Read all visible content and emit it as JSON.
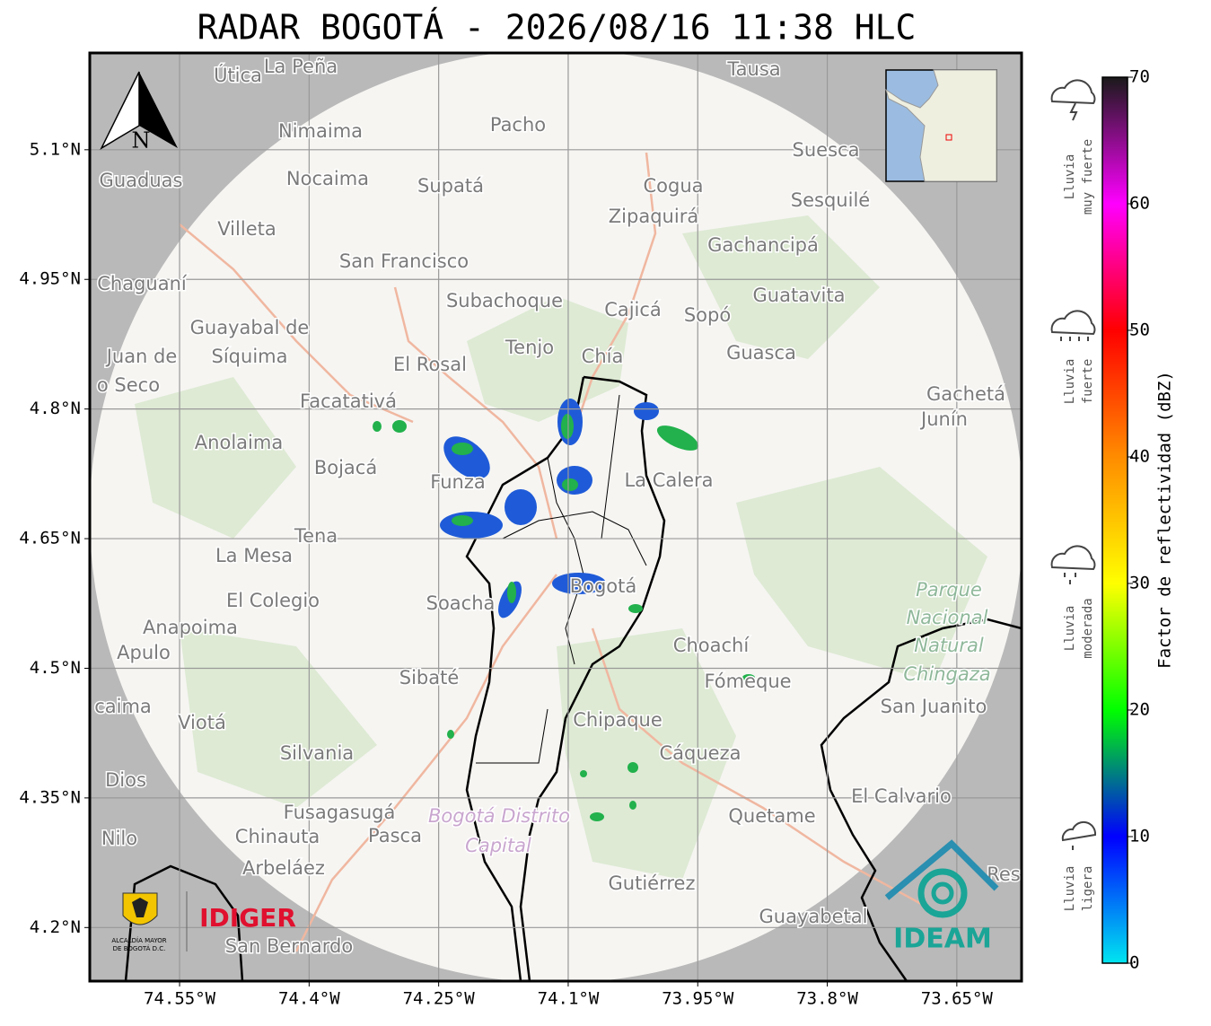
{
  "title": "RADAR BOGOTÁ - 2026/08/16 11:38 HLC",
  "map": {
    "xlim": [
      -74.654,
      -73.575
    ],
    "ylim": [
      4.138,
      5.212
    ],
    "xticks": [
      {
        "value": -74.55,
        "label": "74.55°W"
      },
      {
        "value": -74.4,
        "label": "74.4°W"
      },
      {
        "value": -74.25,
        "label": "74.25°W"
      },
      {
        "value": -74.1,
        "label": "74.1°W"
      },
      {
        "value": -73.95,
        "label": "73.95°W"
      },
      {
        "value": -73.8,
        "label": "73.8°W"
      },
      {
        "value": -73.65,
        "label": "73.65°W"
      }
    ],
    "yticks": [
      {
        "value": 5.1,
        "label": "5.1°N"
      },
      {
        "value": 4.95,
        "label": "4.95°N"
      },
      {
        "value": 4.8,
        "label": "4.8°N"
      },
      {
        "value": 4.65,
        "label": "4.65°N"
      },
      {
        "value": 4.5,
        "label": "4.5°N"
      },
      {
        "value": 4.35,
        "label": "4.35°N"
      },
      {
        "value": 4.2,
        "label": "4.2°N"
      }
    ],
    "grid": true,
    "north": "N",
    "places": [
      "La Peña",
      "Útica",
      "Tausa",
      "Pacho",
      "Nimaima",
      "Guaduas",
      "Nocaima",
      "Supatá",
      "Cogua",
      "Suesca",
      "Sesquilé",
      "Zipaquirá",
      "Villeta",
      "Gachancipá",
      "San Francisco",
      "Chaguaní",
      "Guatavita",
      "Subachoque",
      "Cajicá",
      "Sopó",
      "Guayabal de",
      "Síquima",
      "Tenjo",
      "Chía",
      "Guasca",
      "Juan de",
      "o Seco",
      "El Rosal",
      "Facatativá",
      "Gachetá",
      "Junín",
      "Anolaima",
      "Bojacá",
      "Funza",
      "La Calera",
      "Tena",
      "La Mesa",
      "Parque",
      "Nacional",
      "Natural",
      "Chingaza",
      "El Colegio",
      "Soacha",
      "Bogotá",
      "Anapoima",
      "Choachí",
      "Apulo",
      "Sibaté",
      "Fómeque",
      "San Juanito",
      "caima",
      "Viotá",
      "Chipaque",
      "Silvania",
      "Cáqueza",
      "Dios",
      "El Calvario",
      "Fusagasugá",
      "Quetame",
      "Bogotá Distrito",
      "Capital",
      "Nilo",
      "Chinauta",
      "Pasca",
      "Arbeláez",
      "Gutiérrez",
      "Guayabetal",
      "San Bernardo",
      "Res"
    ]
  },
  "logos": {
    "idiger": "IDIGER",
    "ideam": "IDEAM",
    "alcaldia": [
      "ALCALDÍA MAYOR",
      "DE BOGOTÁ D.C."
    ]
  },
  "colorbar": {
    "label": "Factor de reflectividad (dBZ)",
    "lim": [
      0,
      70
    ],
    "ticks": [
      0,
      10,
      20,
      30,
      40,
      50,
      60,
      70
    ],
    "colors": [
      "#00e5f0",
      "#0000ff",
      "#00ff00",
      "#ffff00",
      "#ff8c00",
      "#ff0000",
      "#ff00ff",
      "#1a1a1a"
    ]
  },
  "legend": [
    [
      "Lluvia",
      "ligera"
    ],
    [
      "Lluvia",
      "moderada"
    ],
    [
      "Lluvia",
      "fuerte"
    ],
    [
      "Lluvia",
      "muy fuerte"
    ]
  ]
}
